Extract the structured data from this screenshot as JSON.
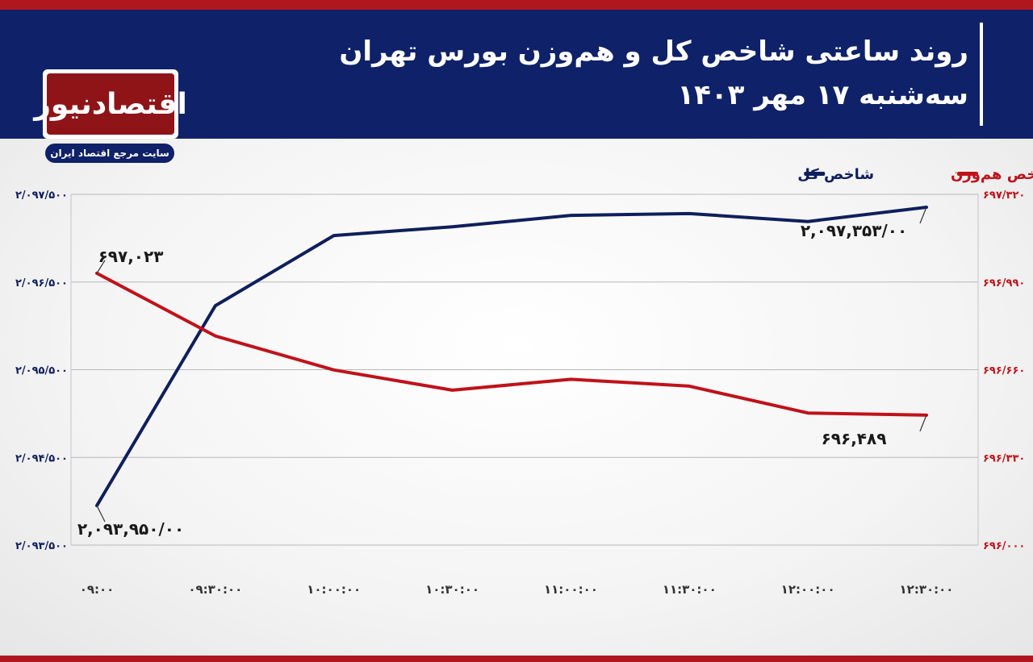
{
  "header": {
    "title": "روند ساعتی شاخص کل و هم‌وزن بورس تهران",
    "subtitle": "سه‌شنبه ۱۷ مهر ۱۴۰۳"
  },
  "logo": {
    "name": "اقتصادنیوز",
    "tagline": "سایت مرجع اقتصاد ایران"
  },
  "colors": {
    "header_bg": "#0f2168",
    "accent_red": "#b0161d",
    "series_total": "#0f1f5c",
    "series_equal": "#c0121a"
  },
  "chart_data": {
    "type": "line",
    "categories": [
      "۰۹:۰۰",
      "۰۹:۳۰:۰۰",
      "۱۰:۰۰:۰۰",
      "۱۰:۳۰:۰۰",
      "۱۱:۰۰:۰۰",
      "۱۱:۳۰:۰۰",
      "۱۲:۰۰:۰۰",
      "۱۲:۳۰:۰۰"
    ],
    "series": [
      {
        "name": "شاخص کل",
        "axis": "left",
        "color": "#0f1f5c",
        "values": [
          2093950,
          2096230,
          2097030,
          2097130,
          2097260,
          2097280,
          2097190,
          2097353
        ]
      },
      {
        "name": "شاخص هم‌وزن",
        "axis": "right",
        "color": "#c0121a",
        "values": [
          697.023,
          696.787,
          696.659,
          696.583,
          696.624,
          696.598,
          696.497,
          696.489
        ]
      }
    ],
    "y_left": {
      "ylim": [
        2093500,
        2097500
      ],
      "ticks": [
        2093500,
        2094500,
        2095500,
        2096500,
        2097500
      ],
      "tick_labels": [
        "۲/۰۹۳/۵۰۰",
        "۲/۰۹۴/۵۰۰",
        "۲/۰۹۵/۵۰۰",
        "۲/۰۹۶/۵۰۰",
        "۲/۰۹۷/۵۰۰"
      ],
      "color": "#0f1f5c"
    },
    "y_right": {
      "ylim": [
        696.0,
        697.32
      ],
      "ticks": [
        696.0,
        696.33,
        696.66,
        696.99,
        697.32
      ],
      "tick_labels": [
        "۶۹۶/۰۰۰",
        "۶۹۶/۳۳۰",
        "۶۹۶/۶۶۰",
        "۶۹۶/۹۹۰",
        "۶۹۷/۳۲۰"
      ],
      "color": "#c0121a"
    },
    "annotations": [
      {
        "series": 1,
        "index": 0,
        "text": "۶۹۷,۰۲۳",
        "placement": "above"
      },
      {
        "series": 1,
        "index": 7,
        "text": "۶۹۶,۴۸۹",
        "placement": "below"
      },
      {
        "series": 0,
        "index": 0,
        "text": "۲,۰۹۳,۹۵۰/۰۰",
        "placement": "below"
      },
      {
        "series": 0,
        "index": 7,
        "text": "۲,۰۹۷,۳۵۳/۰۰",
        "placement": "below"
      }
    ],
    "legend": {
      "placement": "top-right",
      "entries": [
        {
          "label": "شاخص هم‌وزن",
          "color": "#c0121a"
        },
        {
          "label": "شاخص کل",
          "color": "#0f1f5c"
        }
      ]
    },
    "grid": true
  }
}
